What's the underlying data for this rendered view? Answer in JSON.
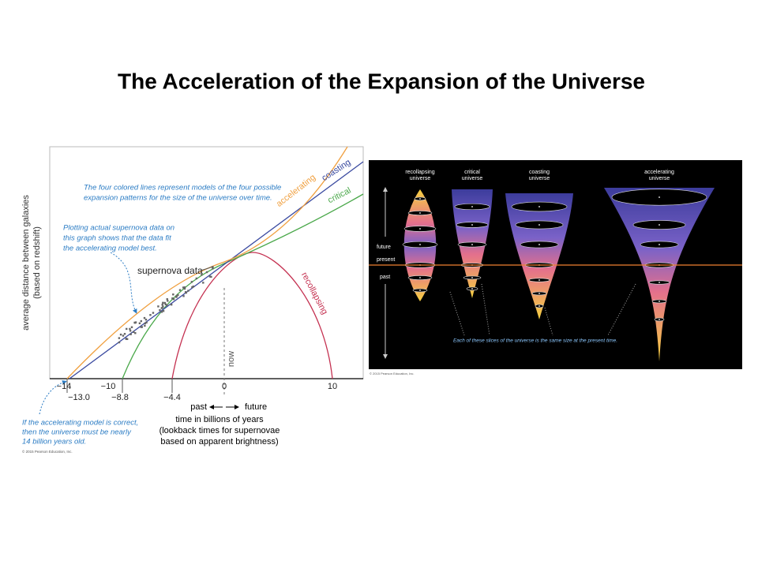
{
  "slide": {
    "title": "The Acceleration of the Expansion of the Universe",
    "left_figure": {
      "note_models": [
        "The four colored lines represent models of the four possible",
        "expansion patterns for the size of the universe over time."
      ],
      "note_data": [
        "Plotting actual supernova data on",
        "this graph shows that the data fit",
        "the accelerating model best."
      ],
      "supernova_label": "supernova data",
      "curve_labels": [
        "accelerating",
        "coasting",
        "critical",
        "recollapsing"
      ],
      "now_label": "now",
      "y_axis_label": [
        "average distance between galaxies",
        "(based on redshift)"
      ],
      "x_ticks": [
        "−14",
        "−10",
        "0",
        "10"
      ],
      "lookback_ticks": [
        "−13.0",
        "−8.8",
        "−4.4"
      ],
      "direction": [
        "past",
        "future"
      ],
      "x_axis_label": [
        "time in billions of years",
        "(lookback times for supernovae",
        "based on apparent brightness)"
      ],
      "note_age": [
        "If the accelerating model is correct,",
        "then the universe must be nearly",
        "14 billion years old."
      ],
      "copyright": "© 2015 Pearson Education, Inc."
    },
    "right_figure": {
      "cone_labels": [
        [
          "recollapsing",
          "universe"
        ],
        [
          "critical",
          "universe"
        ],
        [
          "coasting",
          "universe"
        ],
        [
          "accelerating",
          "universe"
        ]
      ],
      "time_labels": [
        "future",
        "present",
        "past"
      ],
      "caption": "Each of these slices of the universe is the same size at the present time.",
      "copyright": "© 2015 Pearson Education, Inc."
    }
  }
}
